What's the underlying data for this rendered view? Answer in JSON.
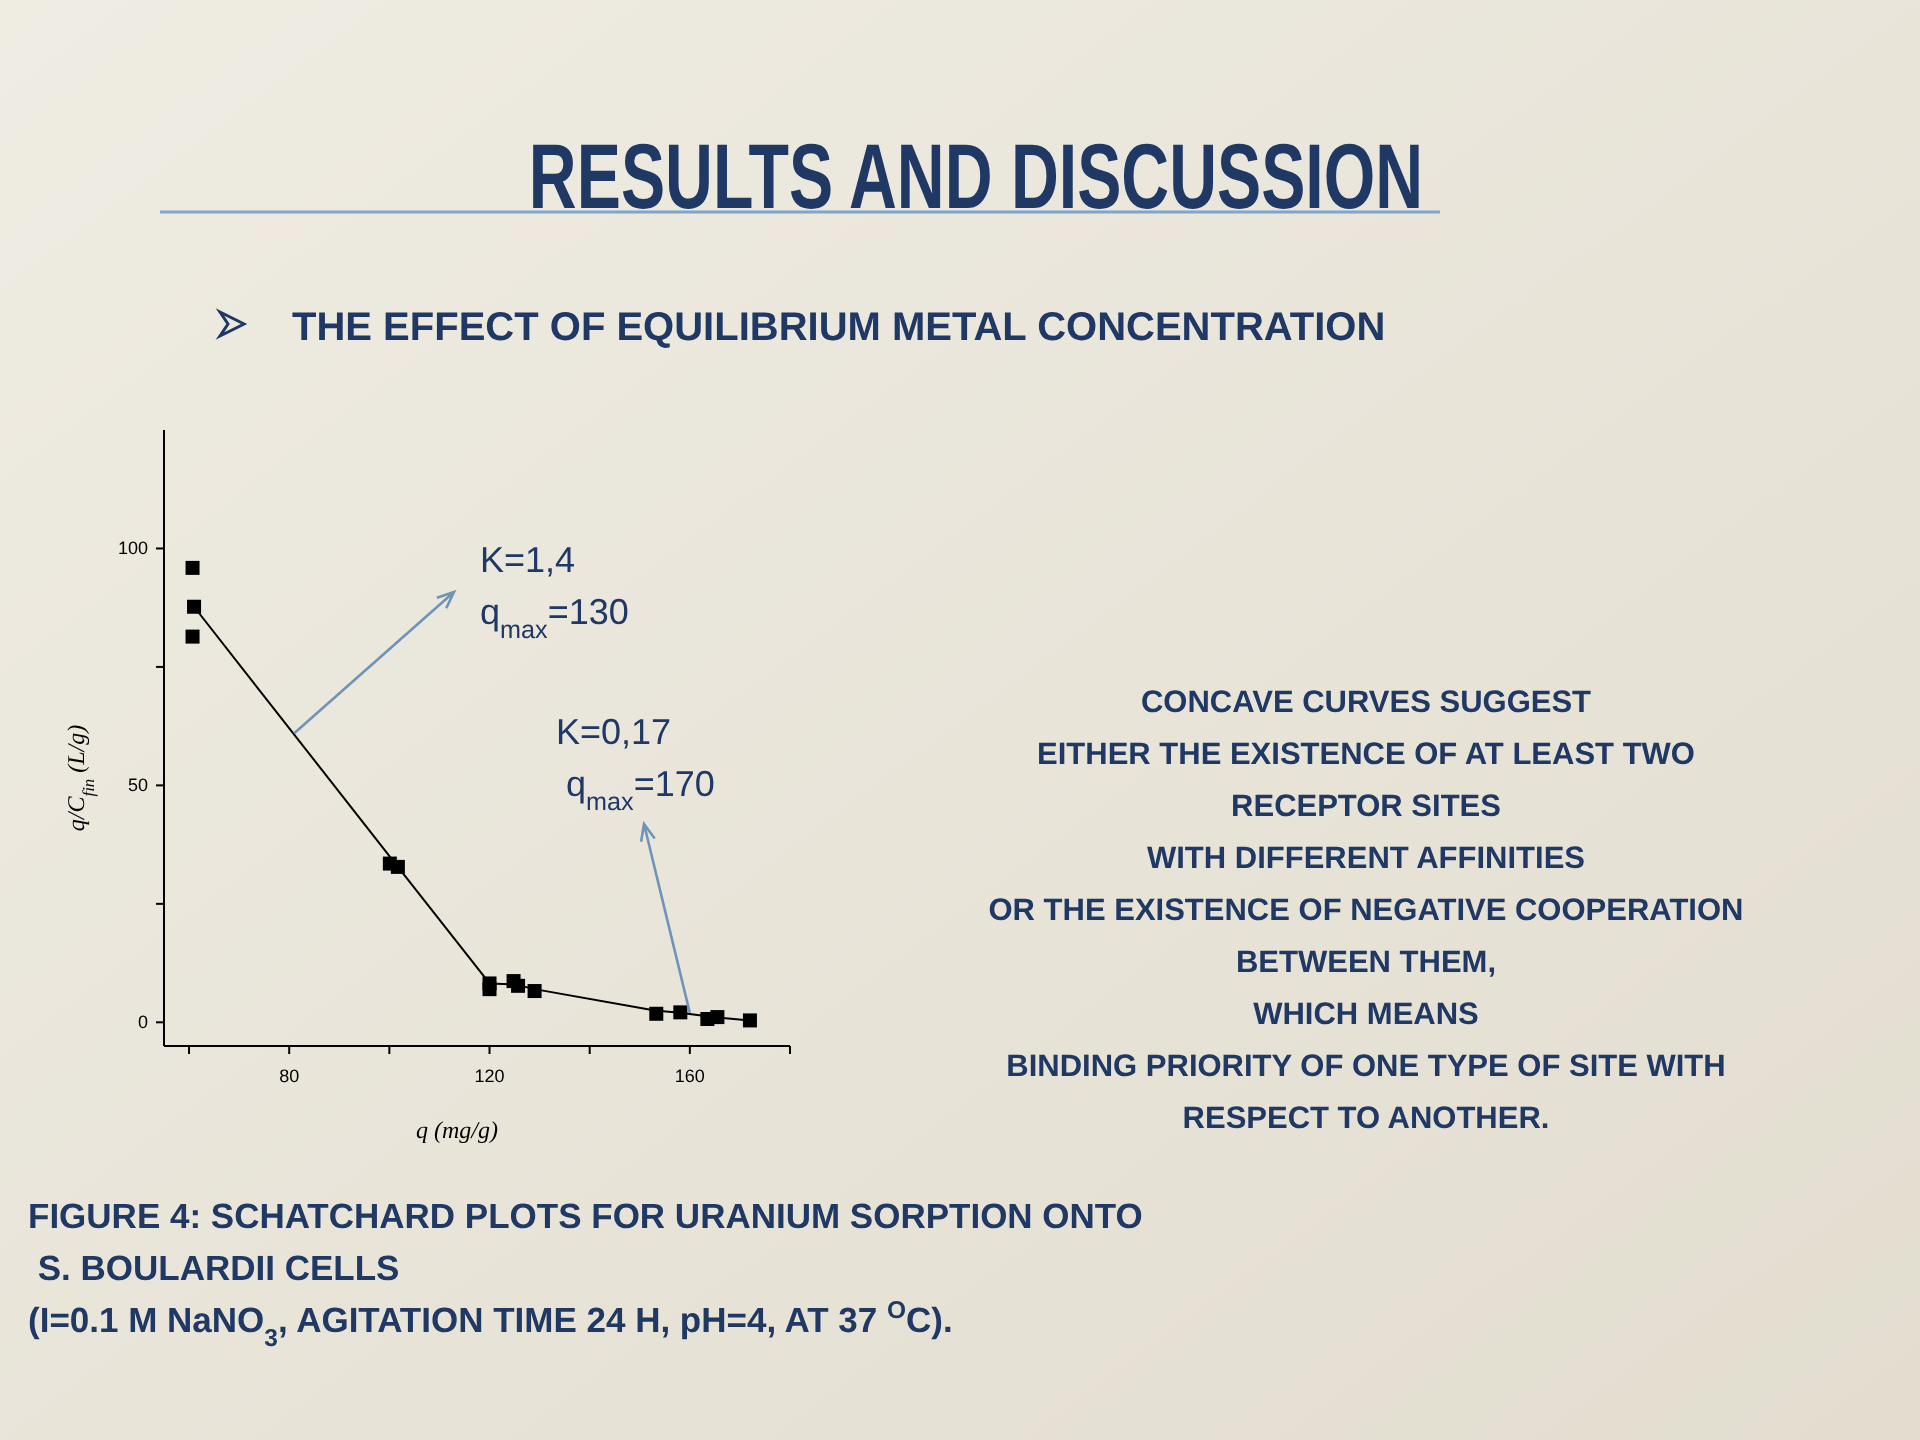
{
  "chart_data": {
    "type": "scatter",
    "title": "RESULTS AND DISCUSSION",
    "subtitle": "THE EFFECT OF EQUILIBRIUM METAL CONCENTRATION",
    "xlabel": "q (mg/g)",
    "ylabel": "q/C$_{fin}$ (L/g)",
    "xlim": [
      55,
      180
    ],
    "xticks": [
      {
        "value": 60,
        "label": null
      },
      80,
      {
        "value": 100,
        "label": null
      },
      120,
      {
        "value": 140,
        "label": null
      },
      160,
      {
        "value": 180,
        "label": null
      }
    ],
    "ylim": [
      -5,
      125
    ],
    "yticks": [
      0,
      {
        "value": 25,
        "label": null
      },
      50,
      {
        "value": 75,
        "label": null
      },
      100
    ],
    "marker": "square",
    "series": [
      {
        "color": "#000000",
        "x": [
          60.7,
          61,
          60.7,
          100.1,
          101.7,
          120,
          120,
          124.8,
          125.7,
          129,
          153.3,
          158.1,
          163.5,
          165.5,
          172
        ],
        "values": [
          95.9,
          87.7,
          81.4,
          33.5,
          32.8,
          8.2,
          7,
          8.7,
          7.7,
          6.6,
          1.8,
          2.1,
          0.7,
          1.1,
          0.4
        ]
      },
      {
        "type": "line",
        "color": "#000000",
        "marker": "none",
        "x": [
          61,
          101.7,
          120,
          125,
          129,
          153,
          158,
          165.5,
          172
        ],
        "values": [
          87.7,
          32.8,
          8.2,
          8,
          7,
          2.5,
          2,
          1,
          0.4
        ]
      }
    ],
    "annotations": [
      {
        "text": "K=1,4\nq$_{max}$=130",
        "x": 81,
        "y": 61
      },
      {
        "text": "K=0,17\n q$_{max}$=170",
        "x": 160,
        "y": 2
      },
      "CONCAVE CURVES SUGGEST\nEITHER THE EXISTENCE OF AT LEAST TWO\nRECEPTOR SITES\nWITH DIFFERENT AFFINITIES\nOR THE EXISTENCE OF NEGATIVE COOPERATION\nBETWEEN THEM,\nWHICH MEANS\nBINDING PRIORITY OF ONE TYPE OF SITE WITH\nRESPECT TO ANOTHER.",
      "FIGURE 4: SCHATCHARD PLOTS FOR URANIUM SORPTION ONTO\n S. BOULARDII CELLS\n(I=0.1 M NaNO$_{3}$, AGITATION TIME 24 H, pH=4, AT 37 $^{O}$C)."
    ]
  }
}
